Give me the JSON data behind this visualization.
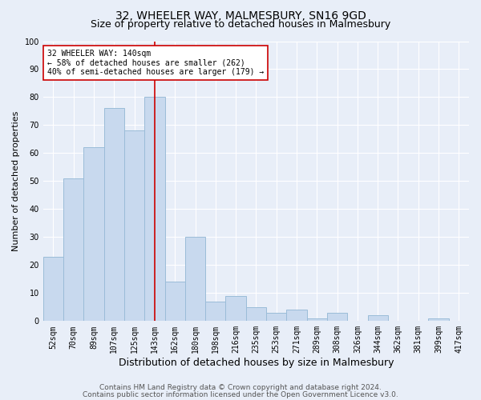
{
  "title1": "32, WHEELER WAY, MALMESBURY, SN16 9GD",
  "title2": "Size of property relative to detached houses in Malmesbury",
  "xlabel": "Distribution of detached houses by size in Malmesbury",
  "ylabel": "Number of detached properties",
  "categories": [
    "52sqm",
    "70sqm",
    "89sqm",
    "107sqm",
    "125sqm",
    "143sqm",
    "162sqm",
    "180sqm",
    "198sqm",
    "216sqm",
    "235sqm",
    "253sqm",
    "271sqm",
    "289sqm",
    "308sqm",
    "326sqm",
    "344sqm",
    "362sqm",
    "381sqm",
    "399sqm",
    "417sqm"
  ],
  "values": [
    23,
    51,
    62,
    76,
    68,
    80,
    14,
    30,
    7,
    9,
    5,
    3,
    4,
    1,
    3,
    0,
    2,
    0,
    0,
    1,
    0
  ],
  "bar_color": "#c8d9ee",
  "bar_edge_color": "#9bbcd8",
  "vline_color": "#cc0000",
  "annotation_text": "32 WHEELER WAY: 140sqm\n← 58% of detached houses are smaller (262)\n40% of semi-detached houses are larger (179) →",
  "annotation_box_color": "#ffffff",
  "annotation_box_edge": "#cc0000",
  "ylim": [
    0,
    100
  ],
  "yticks": [
    0,
    10,
    20,
    30,
    40,
    50,
    60,
    70,
    80,
    90,
    100
  ],
  "bg_color": "#e8eef8",
  "plot_bg_color": "#e8eef8",
  "grid_color": "#ffffff",
  "footer1": "Contains HM Land Registry data © Crown copyright and database right 2024.",
  "footer2": "Contains public sector information licensed under the Open Government Licence v3.0.",
  "title1_fontsize": 10,
  "title2_fontsize": 9,
  "xlabel_fontsize": 9,
  "ylabel_fontsize": 8,
  "tick_fontsize": 7,
  "annotation_fontsize": 7,
  "footer_fontsize": 6.5
}
